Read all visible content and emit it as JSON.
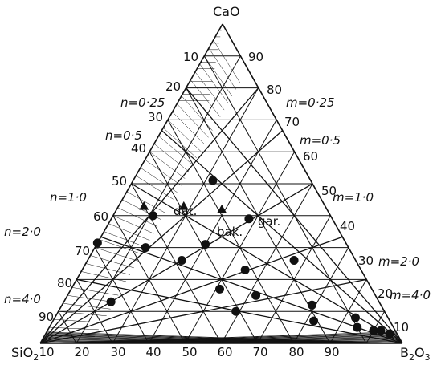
{
  "vertices": {
    "top": "CaO",
    "left": "SiO",
    "left_sub": "2",
    "right": "B",
    "right_sub1": "2",
    "right_mid": "O",
    "right_sub2": "3"
  },
  "ticks": {
    "left_edge": [
      "10",
      "20",
      "30",
      "40",
      "50",
      "60",
      "70",
      "80",
      "90"
    ],
    "right_edge": [
      "90",
      "80",
      "70",
      "60",
      "50",
      "40",
      "30",
      "20",
      "10"
    ],
    "bottom_edge": [
      "10",
      "20",
      "30",
      "40",
      "50",
      "60",
      "70",
      "80",
      "90"
    ]
  },
  "n_labels": [
    "n=0·25",
    "n=0·5",
    "n=1·0",
    "n=2·0",
    "n=4·0"
  ],
  "m_labels": [
    "m=0·25",
    "m=0·5",
    "m=1·0",
    "m=2·0",
    "m=4·0"
  ],
  "mineral_labels": {
    "datolite": "dat.",
    "bakerite": "bak.",
    "garrelsite": "gar."
  },
  "colors": {
    "ink": "#111111",
    "background": "#ffffff"
  },
  "chart_data": {
    "type": "scatter",
    "components": [
      "CaO",
      "SiO2",
      "B2O3"
    ],
    "grid_step": 10,
    "ratio_lines_n": [
      0.25,
      0.5,
      1.0,
      2.0,
      4.0
    ],
    "ratio_lines_m": [
      0.25,
      0.5,
      1.0,
      2.0,
      4.0
    ],
    "points_circle": [
      {
        "CaO": 51,
        "SiO2": 27,
        "B2O3": 22
      },
      {
        "CaO": 40,
        "SiO2": 49,
        "B2O3": 11
      },
      {
        "CaO": 31,
        "SiO2": 39,
        "B2O3": 30
      },
      {
        "CaO": 39,
        "SiO2": 23,
        "B2O3": 38
      },
      {
        "CaO": 33,
        "SiO2": 72,
        "B2O3": -5
      },
      {
        "CaO": 30,
        "SiO2": 56,
        "B2O3": 14
      },
      {
        "CaO": 26,
        "SiO2": 48,
        "B2O3": 26
      },
      {
        "CaO": 23,
        "SiO2": 32,
        "B2O3": 45
      },
      {
        "CaO": 26,
        "SiO2": 17,
        "B2O3": 57
      },
      {
        "CaO": 13,
        "SiO2": 74,
        "B2O3": 13
      },
      {
        "CaO": 17,
        "SiO2": 42,
        "B2O3": 41
      },
      {
        "CaO": 15,
        "SiO2": 33,
        "B2O3": 52
      },
      {
        "CaO": 10,
        "SiO2": 41,
        "B2O3": 49
      },
      {
        "CaO": 12,
        "SiO2": 19,
        "B2O3": 69
      },
      {
        "CaO": 7,
        "SiO2": 21,
        "B2O3": 72
      },
      {
        "CaO": 8,
        "SiO2": 9,
        "B2O3": 83
      },
      {
        "CaO": 5,
        "SiO2": 10,
        "B2O3": 85
      },
      {
        "CaO": 4,
        "SiO2": 6,
        "B2O3": 90
      },
      {
        "CaO": 4,
        "SiO2": 4,
        "B2O3": 92
      },
      {
        "CaO": 3,
        "SiO2": 2,
        "B2O3": 95
      }
    ],
    "points_triangle": [
      {
        "name": "dat.",
        "CaO": 43,
        "SiO2": 50,
        "B2O3": 7
      },
      {
        "name": "bak.",
        "CaO": 43,
        "SiO2": 39,
        "B2O3": 18
      },
      {
        "name": "gar.",
        "CaO": 42,
        "SiO2": 29,
        "B2O3": 29
      }
    ]
  }
}
